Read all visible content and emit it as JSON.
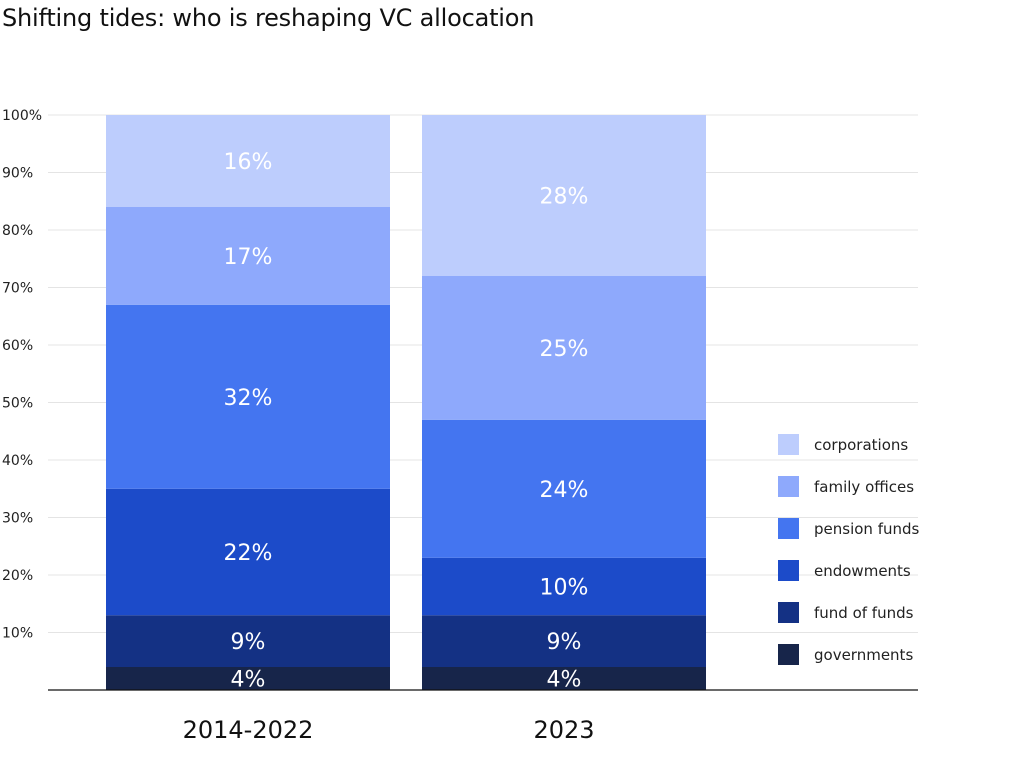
{
  "chart_data": {
    "type": "bar",
    "stacked": true,
    "percent": true,
    "title": "Shifting tides: who is reshaping VC allocation",
    "xlabel": "",
    "ylabel": "",
    "categories": [
      "2014-2022",
      "2023"
    ],
    "ylim": [
      0,
      100
    ],
    "yticks": [
      "",
      "10%",
      "20%",
      "30%",
      "40%",
      "50%",
      "60%",
      "70%",
      "80%",
      "90%",
      "100%"
    ],
    "grid": true,
    "legend_position": "right",
    "series": [
      {
        "name": "governments",
        "color": "#17254a",
        "values": [
          4,
          4
        ],
        "labels": [
          "4%",
          "4%"
        ]
      },
      {
        "name": "fund of funds",
        "color": "#143184",
        "values": [
          9,
          9
        ],
        "labels": [
          "9%",
          "9%"
        ]
      },
      {
        "name": "endowments",
        "color": "#1c4bc9",
        "values": [
          22,
          10
        ],
        "labels": [
          "22%",
          "10%"
        ]
      },
      {
        "name": "pension funds",
        "color": "#4475f0",
        "values": [
          32,
          24
        ],
        "labels": [
          "32%",
          "24%"
        ]
      },
      {
        "name": "family offices",
        "color": "#8ea9fc",
        "values": [
          17,
          25
        ],
        "labels": [
          "17%",
          "25%"
        ]
      },
      {
        "name": "corporations",
        "color": "#bdcdfd",
        "values": [
          16,
          28
        ],
        "labels": [
          "16%",
          "28%"
        ]
      }
    ],
    "legend_order": [
      "corporations",
      "family offices",
      "pension funds",
      "endowments",
      "fund of funds",
      "governments"
    ]
  }
}
